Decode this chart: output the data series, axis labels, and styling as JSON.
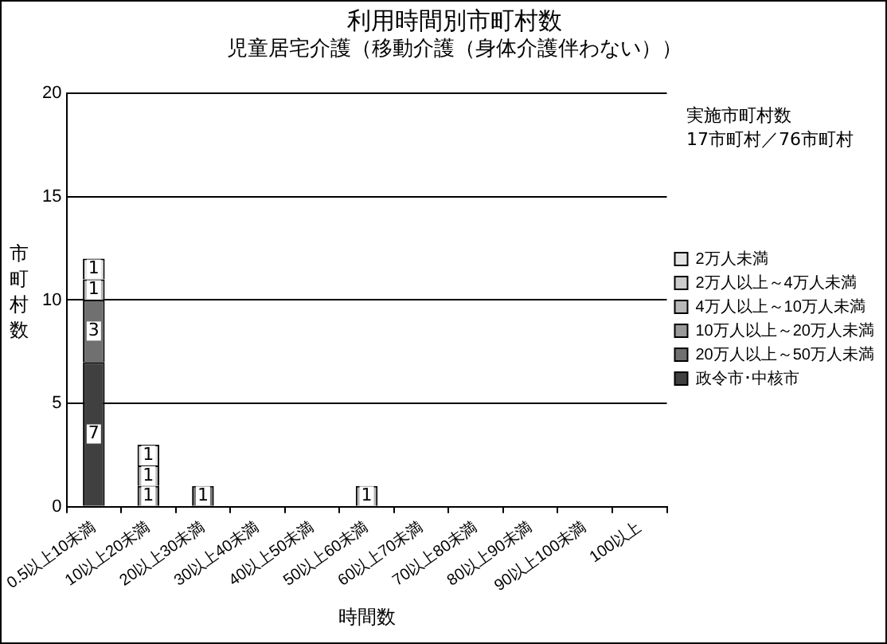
{
  "chart_data": {
    "type": "bar",
    "title": "利用時間別市町村数",
    "subtitle": "児童居宅介護（移動介護（身体介護伴わない））",
    "xlabel": "時間数",
    "ylabel": "市町村数",
    "categories": [
      "0.5以上10未満",
      "10以上20未満",
      "20以上30未満",
      "30以上40未満",
      "40以上50未満",
      "50以上60未満",
      "60以上70未満",
      "70以上80未満",
      "80以上90未満",
      "90以上100未満",
      "100以上"
    ],
    "stacked": true,
    "series": [
      {
        "name": "政令市･中核市",
        "color": "#404040",
        "values": [
          7,
          null,
          null,
          null,
          null,
          null,
          null,
          null,
          null,
          null,
          null
        ]
      },
      {
        "name": "20万人以上～50万人未満",
        "color": "#707070",
        "values": [
          3,
          null,
          1,
          null,
          null,
          null,
          null,
          null,
          null,
          null,
          null
        ]
      },
      {
        "name": "10万人以上～20万人未満",
        "color": "#9a9a9a",
        "values": [
          null,
          1,
          null,
          null,
          null,
          null,
          null,
          null,
          null,
          null,
          null
        ]
      },
      {
        "name": "4万人以上～10万人未満",
        "color": "#b8b8b8",
        "values": [
          1,
          1,
          null,
          null,
          null,
          1,
          null,
          null,
          null,
          null,
          null
        ]
      },
      {
        "name": "2万人以上～4万人未満",
        "color": "#cccccc",
        "values": [
          null,
          null,
          null,
          null,
          null,
          null,
          null,
          null,
          null,
          null,
          null
        ]
      },
      {
        "name": "2万人未満",
        "color": "#e4e4e4",
        "values": [
          1,
          1,
          null,
          null,
          null,
          null,
          null,
          null,
          null,
          null,
          null
        ]
      }
    ],
    "ylim": [
      0,
      20
    ],
    "yticks": [
      0,
      5,
      10,
      15,
      20
    ],
    "grid": "y",
    "legend": "right",
    "data_labels": true,
    "annotations": [
      "実施市町村数",
      "17市町村／76市町村"
    ]
  }
}
